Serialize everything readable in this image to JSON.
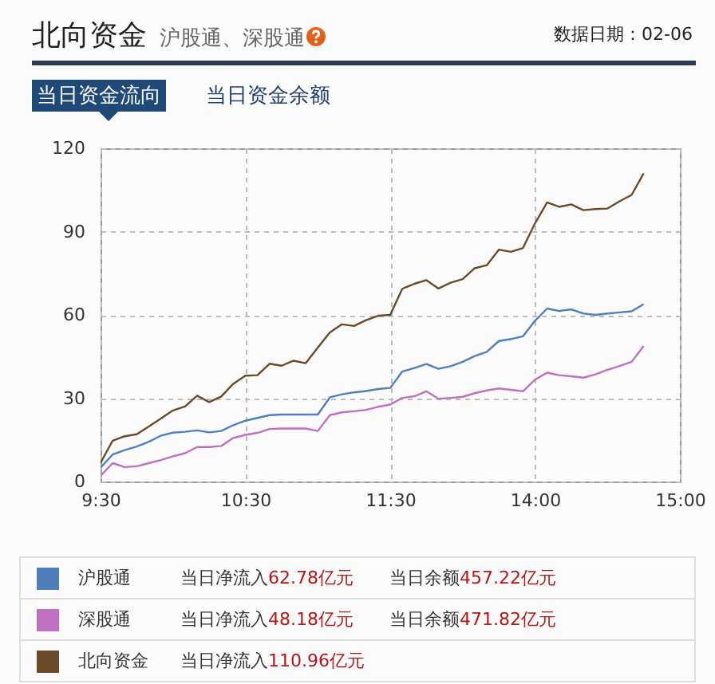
{
  "chart_data": {
    "type": "line",
    "title": "北向资金",
    "subtitle": "沪股通、深股通",
    "annotations": [
      "数据日期：02-06",
      "当日资金流向",
      "当日资金余额",
      "当日净流入62.78亿元",
      "当日余额457.22亿元",
      "当日净流入48.18亿元",
      "当日余额471.82亿元",
      "当日净流入110.96亿元"
    ],
    "categories": [
      "9:30",
      null,
      null,
      null,
      null,
      null,
      null,
      null,
      null,
      null,
      null,
      null,
      "10:30",
      null,
      null,
      null,
      null,
      null,
      null,
      null,
      null,
      null,
      null,
      null,
      "11:30",
      null,
      null,
      null,
      null,
      null,
      null,
      null,
      null,
      null,
      null,
      null,
      "14:00",
      null,
      null,
      null,
      null,
      null,
      null,
      null,
      null,
      null,
      null,
      null,
      "15:00"
    ],
    "ylim": [
      0,
      120
    ],
    "yticks": [
      0,
      30,
      60,
      90,
      120
    ],
    "grid": true,
    "legend": "bottom",
    "line_style": "solid",
    "series": [
      {
        "name": "沪股通",
        "color": "#4f7fbf",
        "values": [
          5,
          9.7,
          11.3,
          12.6,
          14.3,
          16.5,
          17.6,
          17.9,
          18.4,
          17.7,
          18.2,
          20.3,
          21.9,
          22.9,
          23.9,
          24.1,
          24.1,
          24.1,
          24.1,
          30.3,
          31.4,
          32.1,
          32.6,
          33.3,
          33.7,
          39.6,
          40.9,
          42.3,
          40.6,
          41.5,
          43.1,
          45.2,
          46.7,
          50.6,
          51.3,
          52.3,
          57.9,
          62.3,
          61.4,
          62,
          60.5,
          60,
          60.5,
          60.9,
          61.3,
          63.9,
          null,
          null,
          null
        ]
      },
      {
        "name": "深股通",
        "color": "#c070c0",
        "values": [
          2,
          6.6,
          5.2,
          5.5,
          6.6,
          7.7,
          9.1,
          10.2,
          12.4,
          12.4,
          12.8,
          15.7,
          16.8,
          17.5,
          18.9,
          19.1,
          19.1,
          19.1,
          18.2,
          23.9,
          24.9,
          25.3,
          25.8,
          26.9,
          27.7,
          30.1,
          30.7,
          32.5,
          29.8,
          30.1,
          30.5,
          31.8,
          32.8,
          33.5,
          33,
          32.5,
          36.7,
          39.2,
          38.3,
          37.9,
          37.4,
          38.6,
          40.2,
          41.6,
          43.1,
          48.8,
          null,
          null,
          null
        ]
      },
      {
        "name": "北向资金",
        "color": "#6b4a2a",
        "values": [
          6.7,
          14.7,
          16.3,
          17,
          19.8,
          22.7,
          25.6,
          27,
          30.9,
          28.6,
          30.6,
          35.2,
          38.1,
          38.3,
          42.4,
          41.7,
          43.5,
          42.6,
          48.2,
          53.7,
          56.6,
          56,
          58.1,
          59.7,
          60,
          69.4,
          71.2,
          72.5,
          69.5,
          71.6,
          72.9,
          76.8,
          77.9,
          83.5,
          82.7,
          84.1,
          93,
          100.5,
          98.9,
          99.8,
          97.7,
          98.1,
          98.3,
          100.9,
          103.2,
          111,
          null,
          null,
          null
        ]
      }
    ]
  }
}
